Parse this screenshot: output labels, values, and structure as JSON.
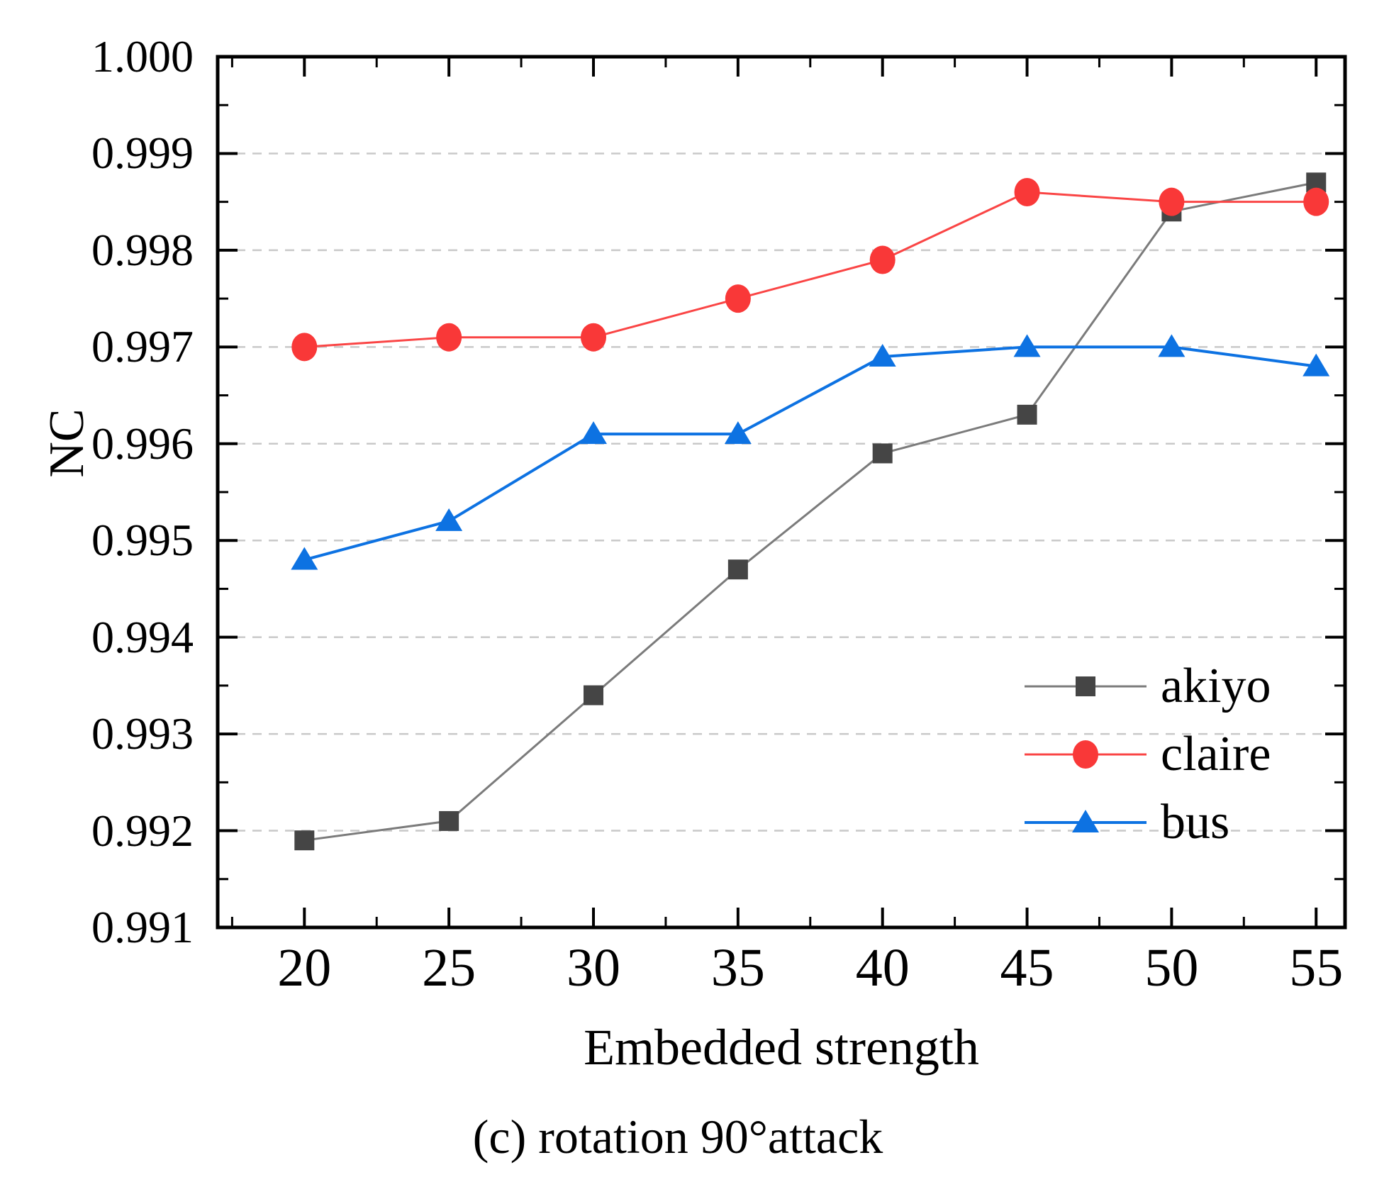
{
  "chart_data": {
    "type": "line",
    "title": "",
    "xlabel": "Embedded strength",
    "ylabel": "NC",
    "caption": "(c) rotation 90°attack",
    "x": [
      20,
      25,
      30,
      35,
      40,
      45,
      50,
      55
    ],
    "x_tick_labels": [
      "20",
      "25",
      "30",
      "35",
      "40",
      "45",
      "50",
      "55"
    ],
    "x_minor_ticks": [
      17.5,
      22.5,
      27.5,
      32.5,
      37.5,
      42.5,
      47.5,
      52.5
    ],
    "y_major_ticks": [
      0.991,
      0.992,
      0.993,
      0.994,
      0.995,
      0.996,
      0.997,
      0.998,
      0.999,
      1.0
    ],
    "y_tick_labels": [
      "0.991",
      "0.992",
      "0.993",
      "0.994",
      "0.995",
      "0.996",
      "0.997",
      "0.998",
      "0.999",
      "1.000"
    ],
    "y_minor_ticks": [
      0.9915,
      0.9925,
      0.9935,
      0.9945,
      0.9955,
      0.9965,
      0.9975,
      0.9985,
      0.9995
    ],
    "xlim": [
      17,
      56
    ],
    "ylim": [
      0.991,
      1.0
    ],
    "grid": "horizontal-dashed",
    "grid_color": "#c9c9c9",
    "legend_position": "inside-right-lower",
    "series": [
      {
        "name": "akiyo",
        "marker": "square",
        "line_color": "#7b7b7b",
        "marker_color": "#454545",
        "values": [
          0.9919,
          0.9921,
          0.9934,
          0.9947,
          0.9959,
          0.9963,
          0.9984,
          0.9987
        ]
      },
      {
        "name": "claire",
        "marker": "circle",
        "line_color": "#fa4545",
        "marker_color": "#f93838",
        "values": [
          0.997,
          0.9971,
          0.9971,
          0.9975,
          0.9979,
          0.9986,
          0.9985,
          0.9985
        ]
      },
      {
        "name": "bus",
        "marker": "triangle",
        "line_color": "#0d72e2",
        "marker_color": "#0d72e2",
        "values": [
          0.9948,
          0.9952,
          0.9961,
          0.9961,
          0.9969,
          0.997,
          0.997,
          0.9968
        ]
      }
    ]
  }
}
